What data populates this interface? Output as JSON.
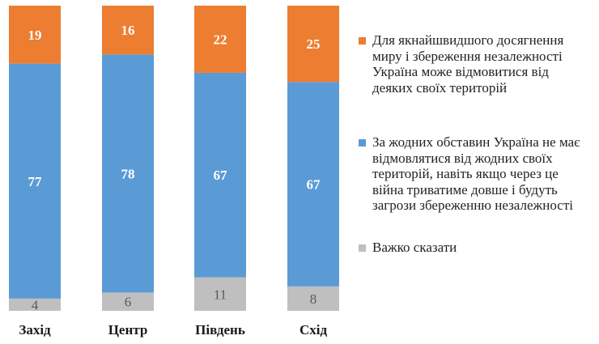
{
  "chart_data": {
    "type": "bar",
    "stacked": true,
    "percent": true,
    "categories": [
      "Захід",
      "Центр",
      "Південь",
      "Схід"
    ],
    "series": [
      {
        "name": "Важко сказати",
        "values": [
          4,
          6,
          11,
          8
        ],
        "color": "#bfbfbf"
      },
      {
        "name": "За жодних обставин Україна не має відмовлятися від жодних своїх територій, навіть якщо через це війна триватиме довше і будуть загрози збереженню незалежності",
        "values": [
          77,
          78,
          67,
          67
        ],
        "color": "#5b9bd5"
      },
      {
        "name": "Для якнайшвидшого досягнення миру і збереження незалежності Україна може відмовитися від деяких своїх територій",
        "values": [
          19,
          16,
          22,
          25
        ],
        "color": "#ed7d31"
      }
    ],
    "legend_position": "right",
    "legend_order": [
      2,
      1,
      0
    ],
    "grid": false,
    "title": "",
    "xlabel": "",
    "ylabel": ""
  }
}
